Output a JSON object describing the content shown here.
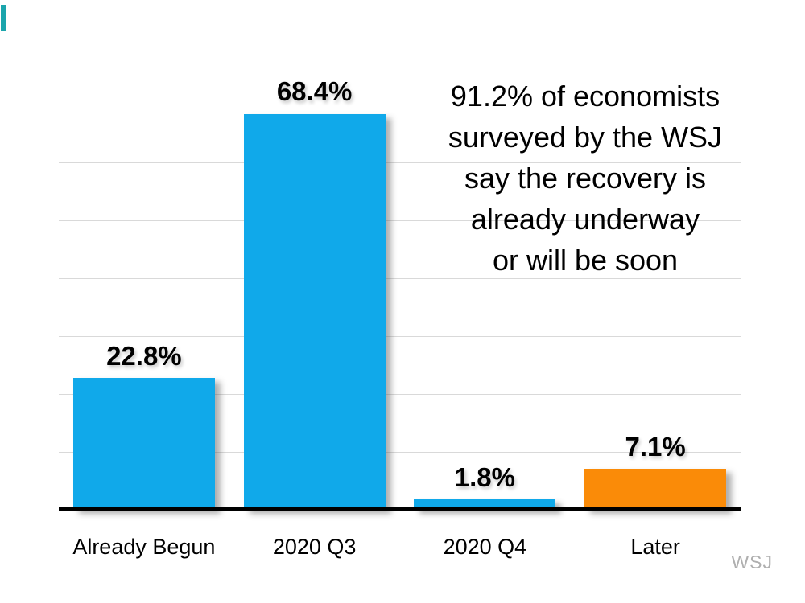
{
  "chart_data": {
    "type": "bar",
    "title": "",
    "xlabel": "",
    "ylabel": "",
    "categories": [
      "Already Begun",
      "2020 Q3",
      "2020 Q4",
      "Later"
    ],
    "values": [
      22.8,
      68.4,
      1.8,
      7.1
    ],
    "value_labels": [
      "22.8%",
      "68.4%",
      "1.8%",
      "7.1%"
    ],
    "bar_colors": [
      "#10A9EA",
      "#10A9EA",
      "#10A9EA",
      "#FA8B08"
    ],
    "ylim": [
      0,
      80
    ],
    "gridline_step": 10,
    "grid": true,
    "legend_position": "none"
  },
  "annotation": {
    "text": "91.2% of economists surveyed by the WSJ say the recovery is already underway or will be soon",
    "lines": [
      "91.2% of economists",
      "surveyed by the WSJ",
      "say the recovery is",
      "already underway",
      "or will be soon"
    ]
  },
  "watermark": "WSJ",
  "colors": {
    "bar_blue": "#10A9EA",
    "bar_orange": "#FA8B08",
    "gridline": "#D9D9D9",
    "axis_line": "#000000",
    "watermark_gray": "#AFAFAF",
    "accent_teal": "#1BA5AC"
  }
}
